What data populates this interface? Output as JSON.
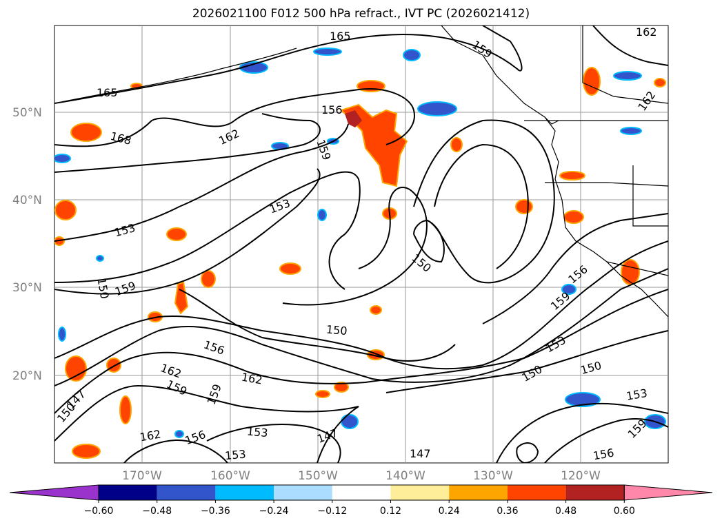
{
  "title": "2026021100 F012 500 hPa refract., IVT PC (2026021412)",
  "lat_labels": [
    "50°N",
    "40°N",
    "30°N",
    "20°N"
  ],
  "lon_labels": [
    "170°W",
    "160°W",
    "150°W",
    "140°W",
    "130°W",
    "120°W"
  ],
  "contour_labels": [
    "165",
    "165",
    "159",
    "162",
    "162",
    "168",
    "162",
    "156",
    "159",
    "153",
    "153",
    "150",
    "159",
    "150",
    "156",
    "159",
    "150",
    "153",
    "150",
    "150",
    "153",
    "159",
    "156",
    "147",
    "156",
    "153",
    "153",
    "162",
    "162",
    "159",
    "159",
    "156",
    "147",
    "147",
    "162",
    "150"
  ],
  "colorbar": {
    "ticks": [
      "−0.60",
      "−0.48",
      "−0.36",
      "−0.24",
      "−0.12",
      "0.12",
      "0.24",
      "0.36",
      "0.48",
      "0.60"
    ],
    "colors": [
      "#9933cc",
      "#000088",
      "#3355cc",
      "#00bbff",
      "#aaddff",
      "#ffffff",
      "#ffee99",
      "#ffa500",
      "#ff4400",
      "#b22222",
      "#ff88aa"
    ]
  }
}
